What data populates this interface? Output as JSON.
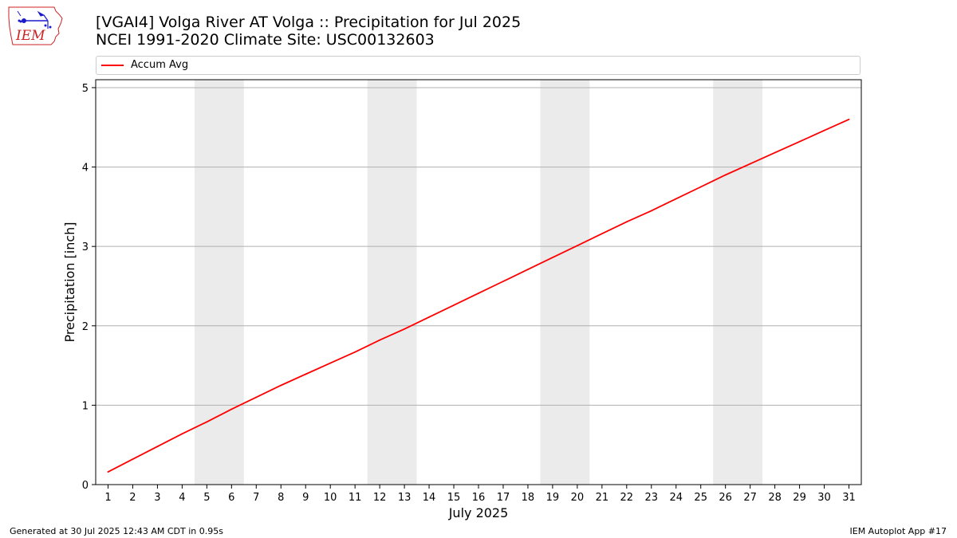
{
  "title_line1": "[VGAI4] Volga River  AT Volga :: Precipitation for Jul 2025",
  "title_line2": "NCEI 1991-2020 Climate Site: USC00132603",
  "logo": {
    "text": "IEM",
    "icon": "iem-iowa-logo-icon"
  },
  "footer": {
    "left": "Generated at 30 Jul 2025 12:43 AM CDT in 0.95s",
    "right": "IEM Autoplot App #17"
  },
  "chart_data": {
    "type": "line",
    "xlabel": "July 2025",
    "ylabel": "Precipitation [inch]",
    "x": [
      1,
      2,
      3,
      4,
      5,
      6,
      7,
      8,
      9,
      10,
      11,
      12,
      13,
      14,
      15,
      16,
      17,
      18,
      19,
      20,
      21,
      22,
      23,
      24,
      25,
      26,
      27,
      28,
      29,
      30,
      31
    ],
    "x_tick_labels": [
      "1",
      "2",
      "3",
      "4",
      "5",
      "6",
      "7",
      "8",
      "9",
      "10",
      "11",
      "12",
      "13",
      "14",
      "15",
      "16",
      "17",
      "18",
      "19",
      "20",
      "21",
      "22",
      "23",
      "24",
      "25",
      "26",
      "27",
      "28",
      "29",
      "30",
      "31"
    ],
    "ylim": [
      0,
      5.1
    ],
    "xlim": [
      0.5,
      31.5
    ],
    "y_ticks": [
      0,
      1,
      2,
      3,
      4,
      5
    ],
    "y_tick_labels": [
      "0",
      "1",
      "2",
      "3",
      "4",
      "5"
    ],
    "grid": "y",
    "legend_position": "top, above plot",
    "weekend_shading": [
      [
        4.5,
        6.5
      ],
      [
        11.5,
        13.5
      ],
      [
        18.5,
        20.5
      ],
      [
        25.5,
        27.5
      ]
    ],
    "series": [
      {
        "name": "Accum Avg",
        "color": "#ff0000",
        "values": [
          0.16,
          0.32,
          0.48,
          0.64,
          0.79,
          0.95,
          1.1,
          1.25,
          1.39,
          1.53,
          1.67,
          1.82,
          1.96,
          2.11,
          2.26,
          2.41,
          2.56,
          2.71,
          2.86,
          3.01,
          3.16,
          3.31,
          3.45,
          3.6,
          3.75,
          3.9,
          4.04,
          4.18,
          4.32,
          4.46,
          4.6
        ]
      }
    ]
  },
  "colors": {
    "weekend_fill": "#ebebeb",
    "grid": "#b0b0b0",
    "line": "#ff0000",
    "logo_red": "#cc2222",
    "logo_blue": "#1a1acc"
  }
}
